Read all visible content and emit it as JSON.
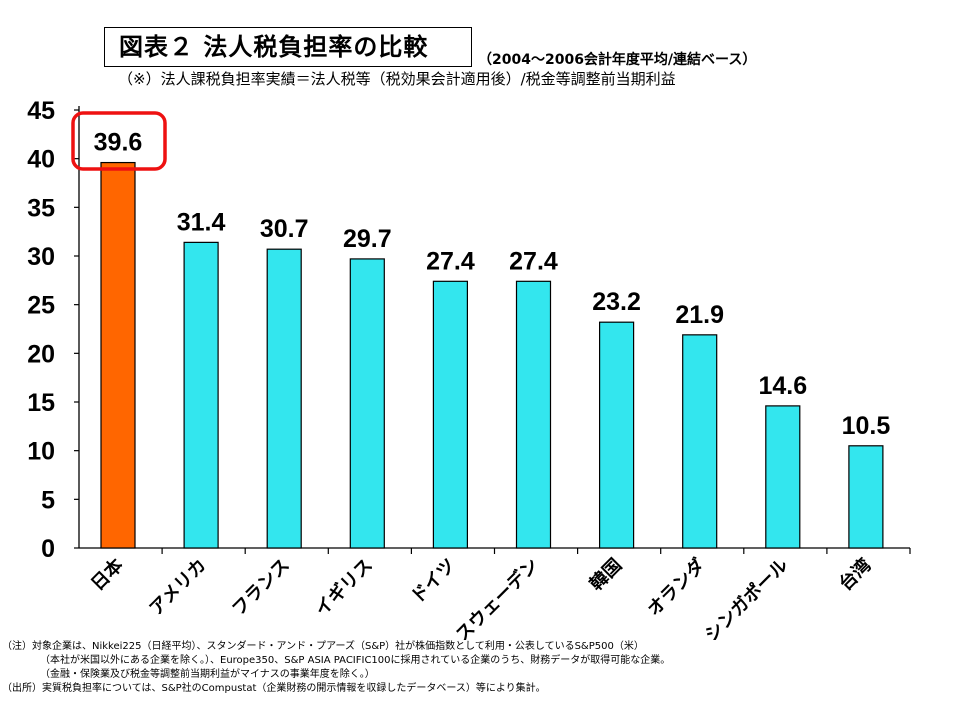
{
  "header": {
    "title": "図表２ 法人税負担率の比較",
    "title_note": "（2004～2006会計年度平均/連結ベース）",
    "subtitle": "（※）法人課税負担率実績＝法人税等（税効果会計適用後）/税金等調整前当期利益"
  },
  "chart_data": {
    "type": "bar",
    "title": "図表２ 法人税負担率の比較",
    "xlabel": "",
    "ylabel": "",
    "categories": [
      "日本",
      "アメリカ",
      "フランス",
      "イギリス",
      "ドイツ",
      "スウェーデン",
      "韓国",
      "オランダ",
      "シンガポール",
      "台湾"
    ],
    "values": [
      39.6,
      31.4,
      30.7,
      29.7,
      27.4,
      27.4,
      23.2,
      21.9,
      14.6,
      10.5
    ],
    "value_labels": [
      "39.6",
      "31.4",
      "30.7",
      "29.7",
      "27.4",
      "27.4",
      "23.2",
      "21.9",
      "14.6",
      "10.5"
    ],
    "ylim": [
      0,
      45
    ],
    "yticks": [
      "0",
      "5",
      "10",
      "15",
      "20",
      "25",
      "30",
      "35",
      "40",
      "45"
    ],
    "grid": false,
    "legend": "none",
    "highlight_index": 0,
    "colors": {
      "bar": "#33E6EE",
      "highlight_bar": "#FF6600",
      "highlight_frame": "#EE1111",
      "bar_outline": "#000000"
    }
  },
  "notes": [
    "（注）対象企業は、Nikkei225（日経平均）、スタンダード・アンド・プアーズ（S&P）社が株価指数として利用・公表しているS&P500（米）",
    "（本社が米国以外にある企業を除く。）、Europe350、S&P ASIA PACIFIC100に採用されている企業のうち、財務データが取得可能な企業。",
    "（金融・保険業及び税金等調整前当期利益がマイナスの事業年度を除く。）",
    "（出所）実質税負担率については、S&P社のCompustat（企業財務の開示情報を収録したデータベース）等により集計。"
  ]
}
